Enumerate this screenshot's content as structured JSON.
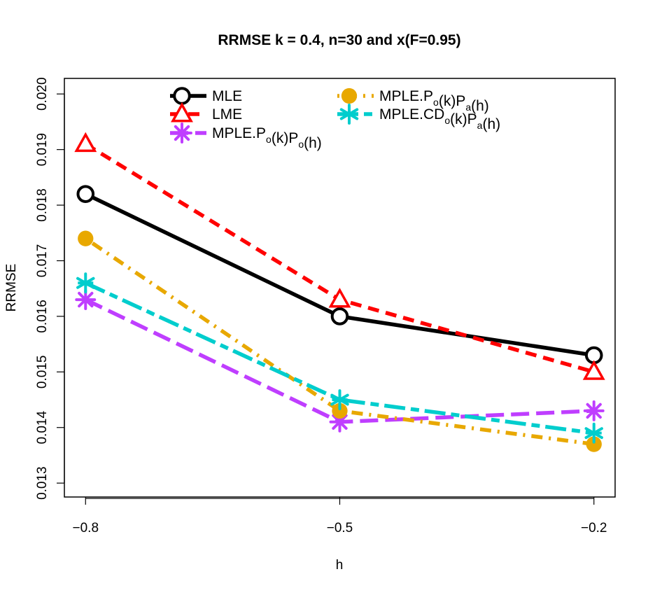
{
  "chart_data": {
    "type": "line",
    "title": "RRMSE k = 0.4, n=30 and x(F=0.95)",
    "xlabel": "h",
    "ylabel": "RRMSE",
    "x": [
      -0.8,
      -0.5,
      -0.2
    ],
    "x_tick_labels": [
      "−0.8",
      "−0.5",
      "−0.2"
    ],
    "xlim": [
      -0.825,
      -0.175
    ],
    "ylim": [
      0.01275,
      0.02028
    ],
    "y_ticks": [
      0.013,
      0.014,
      0.015,
      0.016,
      0.017,
      0.018,
      0.019,
      0.02
    ],
    "y_tick_labels": [
      "0.013",
      "0.014",
      "0.015",
      "0.016",
      "0.017",
      "0.018",
      "0.019",
      "0.020"
    ],
    "legend_position": "top",
    "series": [
      {
        "name": "MLE",
        "label_main": "MLE",
        "values": [
          0.0182,
          0.016,
          0.0153
        ],
        "color": "#000000",
        "dash": "solid",
        "marker": "ring"
      },
      {
        "name": "LME",
        "label_main": "LME",
        "values": [
          0.0191,
          0.0163,
          0.015
        ],
        "color": "#ff0000",
        "dash": "dashed",
        "marker": "triangle"
      },
      {
        "name": "MPLE.Po(k)Po(h)",
        "label_main": "MPLE.P",
        "sub1": "o",
        "mid": "(k)P",
        "sub2": "o",
        "tail": "(h)",
        "values": [
          0.0163,
          0.0141,
          0.0143
        ],
        "color": "#bf3eff",
        "dash": "longdash",
        "marker": "star"
      },
      {
        "name": "MPLE.Po(k)Pa(h)",
        "label_main": "MPLE.P",
        "sub1": "o",
        "mid": "(k)P",
        "sub2": "a",
        "tail": "(h)",
        "values": [
          0.0174,
          0.0143,
          0.0137
        ],
        "color": "#e8a800",
        "dash": "dotdash",
        "marker": "dot"
      },
      {
        "name": "MPLE.CDo(k)Pa(h)",
        "label_main": "MPLE.CD",
        "sub1": "o",
        "mid": "(k)P",
        "sub2": "a",
        "tail": "(h)",
        "values": [
          0.0166,
          0.0145,
          0.0139
        ],
        "color": "#00cdcd",
        "dash": "twodash",
        "marker": "asterisk"
      }
    ]
  }
}
